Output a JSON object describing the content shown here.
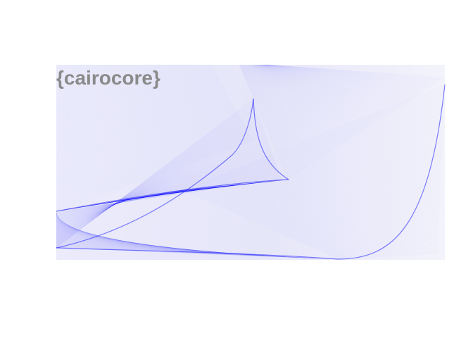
{
  "logo": {
    "text": "{cairocore}",
    "color": "#8a8a8a"
  },
  "artwork": {
    "line_color": "#1a1aff",
    "background_tint": "#eeeefa"
  }
}
